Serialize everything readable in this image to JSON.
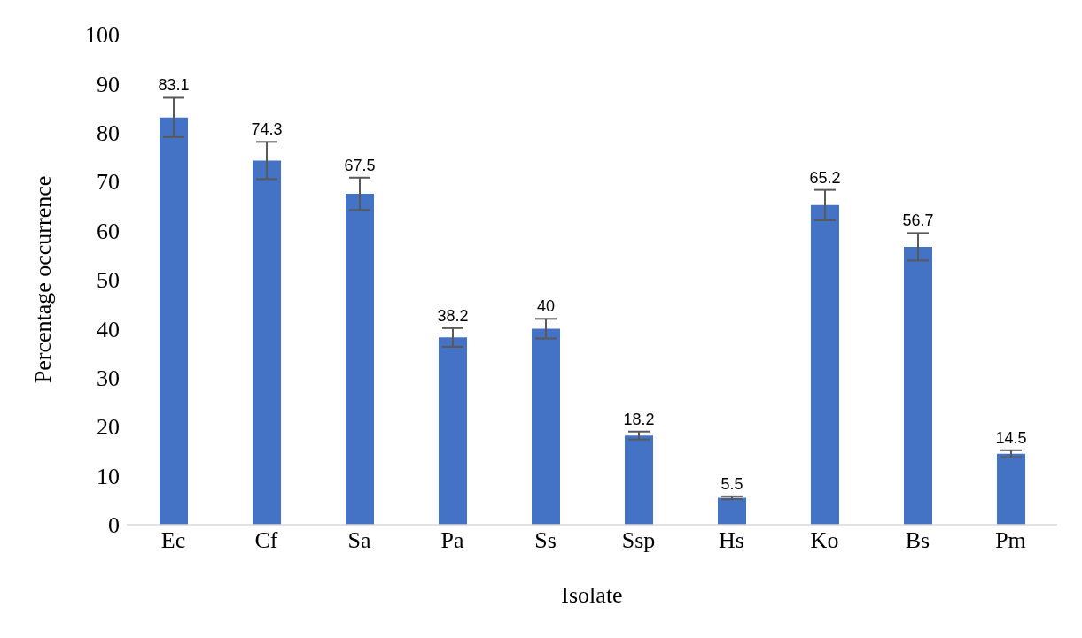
{
  "chart_data": {
    "type": "bar",
    "xlabel": "Isolate",
    "ylabel": "Percentage occurrence",
    "categories": [
      "Ec",
      "Cf",
      "Sa",
      "Pa",
      "Ss",
      "Ssp",
      "Hs",
      "Ko",
      "Bs",
      "Pm"
    ],
    "values": [
      83.1,
      74.3,
      67.5,
      38.2,
      40,
      18.2,
      5.5,
      65.2,
      56.7,
      14.5
    ],
    "errors": [
      4,
      3.8,
      3.3,
      1.9,
      2,
      0.8,
      0.3,
      3.1,
      2.8,
      0.7
    ],
    "color": "#4472c4",
    "data_labels": true,
    "grid": false,
    "legend": false,
    "ylim": [
      0,
      100
    ],
    "yticks": [
      0,
      10,
      20,
      30,
      40,
      50,
      60,
      70,
      80,
      90,
      100
    ]
  }
}
